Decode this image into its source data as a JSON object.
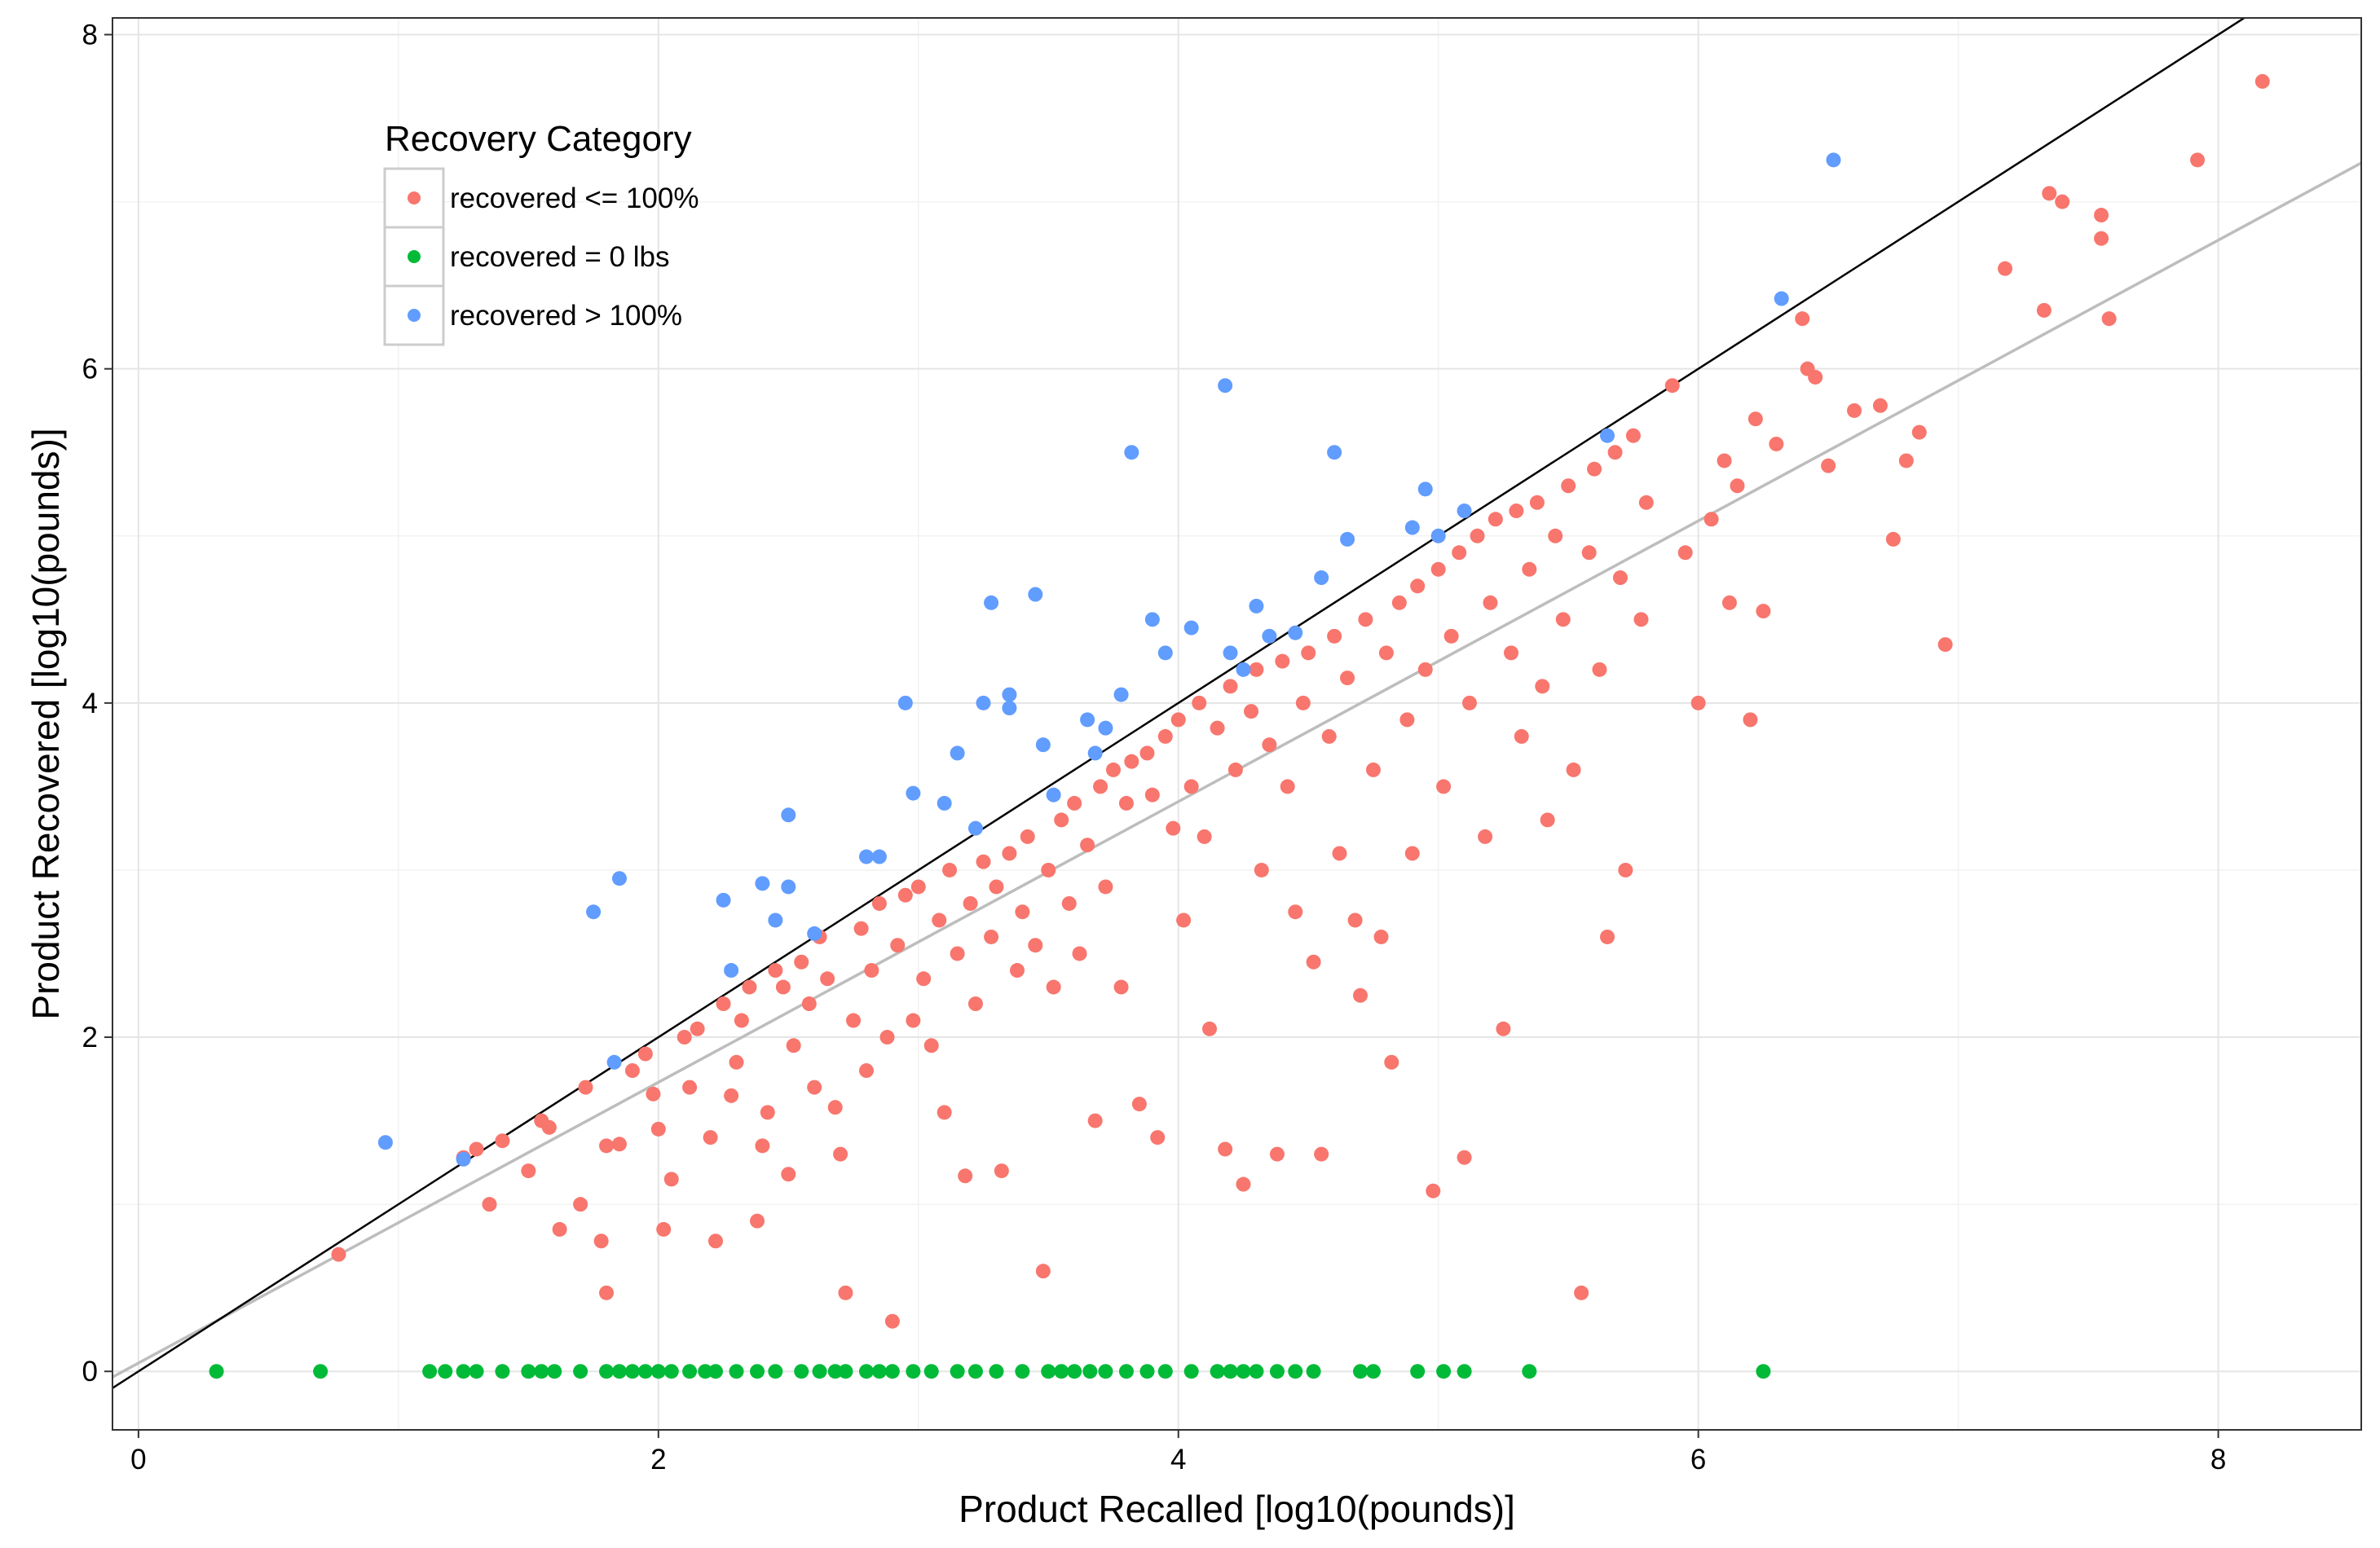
{
  "chart_data": {
    "type": "scatter",
    "title": "",
    "xlabel": "Product Recalled [log10(pounds)]",
    "ylabel": "Product Recovered [log10(pounds)]",
    "xlim": [
      -0.1,
      8.55
    ],
    "ylim": [
      -0.35,
      8.1
    ],
    "x_ticks": [
      0,
      2,
      4,
      6,
      8
    ],
    "y_ticks": [
      0,
      2,
      4,
      6,
      8
    ],
    "grid": true,
    "legend": {
      "title": "Recovery Category",
      "placement": "top-left"
    },
    "reference_lines": [
      {
        "name": "y = x",
        "slope": 1.0,
        "intercept": 0.0,
        "color": "#000000"
      },
      {
        "name": "fit",
        "slope": 0.84,
        "intercept": 0.05,
        "color": "#bdbdbd"
      }
    ],
    "series": [
      {
        "name": "recovered <= 100%",
        "color": "#F8766D",
        "points": [
          [
            0.77,
            0.7
          ],
          [
            1.25,
            1.28
          ],
          [
            1.3,
            1.33
          ],
          [
            1.35,
            1.0
          ],
          [
            1.4,
            1.38
          ],
          [
            1.5,
            1.2
          ],
          [
            1.55,
            1.5
          ],
          [
            1.58,
            1.46
          ],
          [
            1.62,
            0.85
          ],
          [
            1.7,
            1.0
          ],
          [
            1.72,
            1.7
          ],
          [
            1.78,
            0.78
          ],
          [
            1.8,
            1.35
          ],
          [
            1.8,
            0.47
          ],
          [
            1.85,
            1.36
          ],
          [
            1.9,
            1.8
          ],
          [
            1.95,
            1.9
          ],
          [
            1.98,
            1.66
          ],
          [
            2.0,
            1.45
          ],
          [
            2.02,
            0.85
          ],
          [
            2.05,
            1.15
          ],
          [
            2.1,
            2.0
          ],
          [
            2.12,
            1.7
          ],
          [
            2.15,
            2.05
          ],
          [
            2.2,
            1.4
          ],
          [
            2.22,
            0.78
          ],
          [
            2.25,
            2.2
          ],
          [
            2.28,
            1.65
          ],
          [
            2.3,
            1.85
          ],
          [
            2.32,
            2.1
          ],
          [
            2.35,
            2.3
          ],
          [
            2.38,
            0.9
          ],
          [
            2.4,
            1.35
          ],
          [
            2.42,
            1.55
          ],
          [
            2.45,
            2.4
          ],
          [
            2.48,
            2.3
          ],
          [
            2.5,
            1.18
          ],
          [
            2.52,
            1.95
          ],
          [
            2.55,
            2.45
          ],
          [
            2.58,
            2.2
          ],
          [
            2.6,
            1.7
          ],
          [
            2.62,
            2.6
          ],
          [
            2.65,
            2.35
          ],
          [
            2.68,
            1.58
          ],
          [
            2.7,
            1.3
          ],
          [
            2.72,
            0.47
          ],
          [
            2.75,
            2.1
          ],
          [
            2.78,
            2.65
          ],
          [
            2.8,
            1.8
          ],
          [
            2.82,
            2.4
          ],
          [
            2.85,
            2.8
          ],
          [
            2.88,
            2.0
          ],
          [
            2.9,
            0.3
          ],
          [
            2.92,
            2.55
          ],
          [
            2.95,
            2.85
          ],
          [
            2.98,
            2.1
          ],
          [
            3.0,
            2.9
          ],
          [
            3.02,
            2.35
          ],
          [
            3.05,
            1.95
          ],
          [
            3.08,
            2.7
          ],
          [
            3.1,
            1.55
          ],
          [
            3.12,
            3.0
          ],
          [
            3.15,
            2.5
          ],
          [
            3.18,
            1.17
          ],
          [
            3.2,
            2.8
          ],
          [
            3.22,
            2.2
          ],
          [
            3.25,
            3.05
          ],
          [
            3.28,
            2.6
          ],
          [
            3.3,
            2.9
          ],
          [
            3.32,
            1.2
          ],
          [
            3.35,
            3.1
          ],
          [
            3.38,
            2.4
          ],
          [
            3.4,
            2.75
          ],
          [
            3.42,
            3.2
          ],
          [
            3.45,
            2.55
          ],
          [
            3.48,
            0.6
          ],
          [
            3.5,
            3.0
          ],
          [
            3.52,
            2.3
          ],
          [
            3.55,
            3.3
          ],
          [
            3.58,
            2.8
          ],
          [
            3.6,
            3.4
          ],
          [
            3.62,
            2.5
          ],
          [
            3.65,
            3.15
          ],
          [
            3.68,
            1.5
          ],
          [
            3.7,
            3.5
          ],
          [
            3.72,
            2.9
          ],
          [
            3.75,
            3.6
          ],
          [
            3.78,
            2.3
          ],
          [
            3.8,
            3.4
          ],
          [
            3.82,
            3.65
          ],
          [
            3.85,
            1.6
          ],
          [
            3.88,
            3.7
          ],
          [
            3.9,
            3.45
          ],
          [
            3.92,
            1.4
          ],
          [
            3.95,
            3.8
          ],
          [
            3.98,
            3.25
          ],
          [
            4.0,
            3.9
          ],
          [
            4.02,
            2.7
          ],
          [
            4.05,
            3.5
          ],
          [
            4.08,
            4.0
          ],
          [
            4.1,
            3.2
          ],
          [
            4.12,
            2.05
          ],
          [
            4.15,
            3.85
          ],
          [
            4.18,
            1.33
          ],
          [
            4.2,
            4.1
          ],
          [
            4.22,
            3.6
          ],
          [
            4.25,
            1.12
          ],
          [
            4.28,
            3.95
          ],
          [
            4.3,
            4.2
          ],
          [
            4.32,
            3.0
          ],
          [
            4.35,
            3.75
          ],
          [
            4.38,
            1.3
          ],
          [
            4.4,
            4.25
          ],
          [
            4.42,
            3.5
          ],
          [
            4.45,
            2.75
          ],
          [
            4.48,
            4.0
          ],
          [
            4.5,
            4.3
          ],
          [
            4.52,
            2.45
          ],
          [
            4.55,
            1.3
          ],
          [
            4.58,
            3.8
          ],
          [
            4.6,
            4.4
          ],
          [
            4.62,
            3.1
          ],
          [
            4.65,
            4.15
          ],
          [
            4.68,
            2.7
          ],
          [
            4.7,
            2.25
          ],
          [
            4.72,
            4.5
          ],
          [
            4.75,
            3.6
          ],
          [
            4.78,
            2.6
          ],
          [
            4.8,
            4.3
          ],
          [
            4.82,
            1.85
          ],
          [
            4.85,
            4.6
          ],
          [
            4.88,
            3.9
          ],
          [
            4.9,
            3.1
          ],
          [
            4.92,
            4.7
          ],
          [
            4.95,
            4.2
          ],
          [
            4.98,
            1.08
          ],
          [
            5.0,
            4.8
          ],
          [
            5.02,
            3.5
          ],
          [
            5.05,
            4.4
          ],
          [
            5.08,
            4.9
          ],
          [
            5.1,
            1.28
          ],
          [
            5.12,
            4.0
          ],
          [
            5.15,
            5.0
          ],
          [
            5.18,
            3.2
          ],
          [
            5.2,
            4.6
          ],
          [
            5.22,
            5.1
          ],
          [
            5.25,
            2.05
          ],
          [
            5.28,
            4.3
          ],
          [
            5.3,
            5.15
          ],
          [
            5.32,
            3.8
          ],
          [
            5.35,
            4.8
          ],
          [
            5.38,
            5.2
          ],
          [
            5.4,
            4.1
          ],
          [
            5.42,
            3.3
          ],
          [
            5.45,
            5.0
          ],
          [
            5.48,
            4.5
          ],
          [
            5.5,
            5.3
          ],
          [
            5.52,
            3.6
          ],
          [
            5.55,
            0.47
          ],
          [
            5.58,
            4.9
          ],
          [
            5.6,
            5.4
          ],
          [
            5.62,
            4.2
          ],
          [
            5.65,
            2.6
          ],
          [
            5.68,
            5.5
          ],
          [
            5.7,
            4.75
          ],
          [
            5.72,
            3.0
          ],
          [
            5.75,
            5.6
          ],
          [
            5.78,
            4.5
          ],
          [
            5.8,
            5.2
          ],
          [
            5.9,
            5.9
          ],
          [
            5.95,
            4.9
          ],
          [
            6.0,
            4.0
          ],
          [
            6.05,
            5.1
          ],
          [
            6.1,
            5.45
          ],
          [
            6.12,
            4.6
          ],
          [
            6.15,
            5.3
          ],
          [
            6.2,
            3.9
          ],
          [
            6.22,
            5.7
          ],
          [
            6.25,
            4.55
          ],
          [
            6.3,
            5.55
          ],
          [
            6.4,
            6.3
          ],
          [
            6.42,
            6.0
          ],
          [
            6.45,
            5.95
          ],
          [
            6.5,
            5.42
          ],
          [
            6.6,
            5.75
          ],
          [
            6.7,
            5.78
          ],
          [
            6.75,
            4.98
          ],
          [
            6.8,
            5.45
          ],
          [
            6.85,
            5.62
          ],
          [
            6.95,
            4.35
          ],
          [
            7.18,
            6.6
          ],
          [
            7.33,
            6.35
          ],
          [
            7.35,
            7.05
          ],
          [
            7.4,
            7.0
          ],
          [
            7.55,
            6.92
          ],
          [
            7.55,
            6.78
          ],
          [
            7.58,
            6.3
          ],
          [
            7.92,
            7.25
          ],
          [
            8.17,
            7.72
          ]
        ]
      },
      {
        "name": "recovered = 0 lbs",
        "color": "#00BA38",
        "points": [
          [
            0.3,
            0
          ],
          [
            0.7,
            0
          ],
          [
            1.12,
            0
          ],
          [
            1.18,
            0
          ],
          [
            1.25,
            0
          ],
          [
            1.3,
            0
          ],
          [
            1.4,
            0
          ],
          [
            1.5,
            0
          ],
          [
            1.55,
            0
          ],
          [
            1.6,
            0
          ],
          [
            1.7,
            0
          ],
          [
            1.8,
            0
          ],
          [
            1.85,
            0
          ],
          [
            1.9,
            0
          ],
          [
            1.95,
            0
          ],
          [
            2.0,
            0
          ],
          [
            2.05,
            0
          ],
          [
            2.12,
            0
          ],
          [
            2.18,
            0
          ],
          [
            2.22,
            0
          ],
          [
            2.3,
            0
          ],
          [
            2.38,
            0
          ],
          [
            2.45,
            0
          ],
          [
            2.55,
            0
          ],
          [
            2.62,
            0
          ],
          [
            2.68,
            0
          ],
          [
            2.72,
            0
          ],
          [
            2.8,
            0
          ],
          [
            2.85,
            0
          ],
          [
            2.9,
            0
          ],
          [
            2.98,
            0
          ],
          [
            3.05,
            0
          ],
          [
            3.15,
            0
          ],
          [
            3.22,
            0
          ],
          [
            3.3,
            0
          ],
          [
            3.4,
            0
          ],
          [
            3.5,
            0
          ],
          [
            3.55,
            0
          ],
          [
            3.6,
            0
          ],
          [
            3.66,
            0
          ],
          [
            3.72,
            0
          ],
          [
            3.8,
            0
          ],
          [
            3.88,
            0
          ],
          [
            3.95,
            0
          ],
          [
            4.05,
            0
          ],
          [
            4.15,
            0
          ],
          [
            4.2,
            0
          ],
          [
            4.25,
            0
          ],
          [
            4.3,
            0
          ],
          [
            4.38,
            0
          ],
          [
            4.45,
            0
          ],
          [
            4.52,
            0
          ],
          [
            4.7,
            0
          ],
          [
            4.75,
            0
          ],
          [
            4.92,
            0
          ],
          [
            5.02,
            0
          ],
          [
            5.1,
            0
          ],
          [
            5.35,
            0
          ],
          [
            6.25,
            0
          ]
        ]
      },
      {
        "name": "recovered > 100%",
        "color": "#619CFF",
        "points": [
          [
            0.95,
            1.37
          ],
          [
            1.25,
            1.27
          ],
          [
            1.75,
            2.75
          ],
          [
            1.85,
            2.95
          ],
          [
            1.83,
            1.85
          ],
          [
            2.25,
            2.82
          ],
          [
            2.28,
            2.4
          ],
          [
            2.4,
            2.92
          ],
          [
            2.45,
            2.7
          ],
          [
            2.5,
            3.33
          ],
          [
            2.5,
            2.9
          ],
          [
            2.6,
            2.62
          ],
          [
            2.8,
            3.08
          ],
          [
            2.85,
            3.08
          ],
          [
            2.95,
            4.0
          ],
          [
            2.98,
            3.46
          ],
          [
            3.1,
            3.4
          ],
          [
            3.15,
            3.7
          ],
          [
            3.22,
            3.25
          ],
          [
            3.25,
            4.0
          ],
          [
            3.28,
            4.6
          ],
          [
            3.35,
            3.97
          ],
          [
            3.35,
            4.05
          ],
          [
            3.45,
            4.65
          ],
          [
            3.48,
            3.75
          ],
          [
            3.52,
            3.45
          ],
          [
            3.65,
            3.9
          ],
          [
            3.68,
            3.7
          ],
          [
            3.72,
            3.85
          ],
          [
            3.78,
            4.05
          ],
          [
            3.82,
            5.5
          ],
          [
            3.9,
            4.5
          ],
          [
            3.95,
            4.3
          ],
          [
            4.05,
            4.45
          ],
          [
            4.18,
            5.9
          ],
          [
            4.2,
            4.3
          ],
          [
            4.25,
            4.2
          ],
          [
            4.3,
            4.58
          ],
          [
            4.35,
            4.4
          ],
          [
            4.45,
            4.42
          ],
          [
            4.55,
            4.75
          ],
          [
            4.6,
            5.5
          ],
          [
            4.65,
            4.98
          ],
          [
            4.9,
            5.05
          ],
          [
            4.95,
            5.28
          ],
          [
            5.0,
            5.0
          ],
          [
            5.1,
            5.15
          ],
          [
            5.65,
            5.6
          ],
          [
            6.32,
            6.42
          ],
          [
            6.52,
            7.25
          ]
        ]
      }
    ]
  }
}
